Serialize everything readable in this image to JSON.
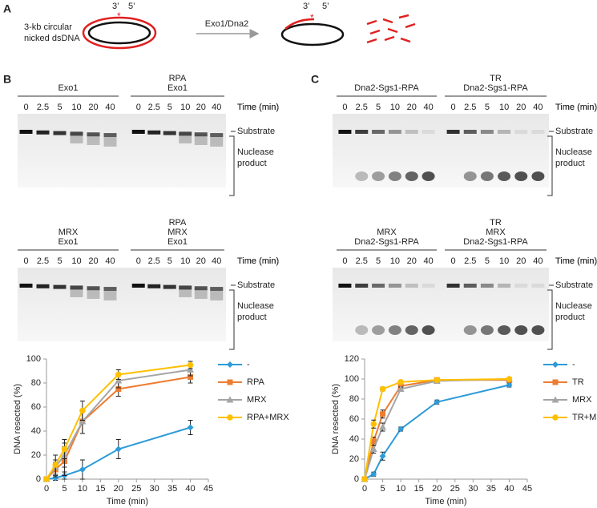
{
  "panel_a": {
    "label": "A",
    "substrate": [
      "3-kb circular",
      "nicked dsDNA"
    ],
    "ends_left": [
      "3’",
      "5’"
    ],
    "ends_right": [
      "3’",
      "5’"
    ],
    "enzyme": "Exo1/Dna2"
  },
  "panel_b": {
    "label": "B",
    "gels": [
      {
        "groups": [
          {
            "header": [
              "Exo1"
            ],
            "times": [
              "0",
              "2.5",
              "5",
              "10",
              "20",
              "40"
            ]
          },
          {
            "header": [
              "RPA",
              "Exo1"
            ],
            "times": [
              "0",
              "2.5",
              "5",
              "10",
              "20",
              "40"
            ]
          }
        ],
        "time_unit": "Time (min)",
        "substrate": "Substrate",
        "product": [
          "Nuclease",
          "product"
        ]
      },
      {
        "groups": [
          {
            "header": [
              "MRX",
              "Exo1"
            ],
            "times": [
              "0",
              "2.5",
              "5",
              "10",
              "20",
              "40"
            ]
          },
          {
            "header": [
              "RPA",
              "MRX",
              "Exo1"
            ],
            "times": [
              "0",
              "2.5",
              "5",
              "10",
              "20",
              "40"
            ]
          }
        ],
        "time_unit": "Time (min)",
        "substrate": "Substrate",
        "product": [
          "Nuclease",
          "product"
        ]
      }
    ]
  },
  "panel_c": {
    "label": "C",
    "gels": [
      {
        "groups": [
          {
            "header": [
              "Dna2-Sgs1-RPA"
            ],
            "times": [
              "0",
              "2.5",
              "5",
              "10",
              "20",
              "40"
            ]
          },
          {
            "header": [
              "TR",
              "Dna2-Sgs1-RPA"
            ],
            "times": [
              "0",
              "2.5",
              "5",
              "10",
              "20",
              "40"
            ]
          }
        ],
        "time_unit": "Time (min)",
        "substrate": "Substrate",
        "product": [
          "Nuclease",
          "product"
        ]
      },
      {
        "groups": [
          {
            "header": [
              "MRX",
              "Dna2-Sgs1-RPA"
            ],
            "times": [
              "0",
              "2.5",
              "5",
              "10",
              "20",
              "40"
            ]
          },
          {
            "header": [
              "TR",
              "MRX",
              "Dna2-Sgs1-RPA"
            ],
            "times": [
              "0",
              "2.5",
              "5",
              "10",
              "20",
              "40"
            ]
          }
        ],
        "time_unit": "Time (min)",
        "substrate": "Substrate",
        "product": [
          "Nuclease",
          "product"
        ]
      }
    ]
  },
  "chart_data": [
    {
      "type": "line",
      "x_label": "Time (min)",
      "y_label": "DNA resected (%)",
      "x": [
        0,
        2.5,
        5,
        10,
        20,
        40
      ],
      "xlim": [
        0,
        45
      ],
      "xticks": [
        0,
        5,
        10,
        15,
        20,
        25,
        30,
        35,
        40,
        45
      ],
      "ylim": [
        0,
        100
      ],
      "yticks": [
        0,
        20,
        40,
        60,
        80,
        100
      ],
      "series": [
        {
          "name": "-",
          "color": "#2e9bd8",
          "marker": "diamond",
          "values": [
            0,
            1,
            3,
            8,
            25,
            43
          ],
          "errors": [
            0,
            2,
            3,
            8,
            8,
            6
          ]
        },
        {
          "name": "RPA",
          "color": "#ed7d31",
          "marker": "square",
          "values": [
            0,
            8,
            15,
            48,
            75,
            85
          ],
          "errors": [
            0,
            6,
            12,
            10,
            6,
            5
          ]
        },
        {
          "name": "MRX",
          "color": "#a5a5a5",
          "marker": "triangle",
          "values": [
            0,
            10,
            20,
            48,
            82,
            91
          ],
          "errors": [
            0,
            6,
            10,
            10,
            6,
            5
          ]
        },
        {
          "name": "RPA+MRX",
          "color": "#ffc000",
          "marker": "circle",
          "values": [
            0,
            12,
            25,
            57,
            87,
            95
          ],
          "errors": [
            0,
            8,
            8,
            8,
            4,
            3
          ]
        }
      ]
    },
    {
      "type": "line",
      "x_label": "Time (min)",
      "y_label": "DNA resected (%)",
      "x": [
        0,
        2.5,
        5,
        10,
        20,
        40
      ],
      "xlim": [
        0,
        45
      ],
      "xticks": [
        0,
        5,
        10,
        15,
        20,
        25,
        30,
        35,
        40,
        45
      ],
      "ylim": [
        0,
        120
      ],
      "yticks": [
        0,
        20,
        40,
        60,
        80,
        100,
        120
      ],
      "series": [
        {
          "name": "-",
          "color": "#2e9bd8",
          "marker": "diamond",
          "values": [
            0,
            5,
            23,
            50,
            77,
            94
          ],
          "errors": [
            0,
            2,
            4,
            2,
            2,
            2
          ]
        },
        {
          "name": "TR",
          "color": "#ed7d31",
          "marker": "square",
          "values": [
            0,
            38,
            65,
            93,
            99,
            99
          ],
          "errors": [
            0,
            4,
            4,
            2,
            1,
            1
          ]
        },
        {
          "name": "MRX",
          "color": "#a5a5a5",
          "marker": "triangle",
          "values": [
            0,
            30,
            52,
            90,
            98,
            100
          ],
          "errors": [
            0,
            4,
            4,
            2,
            1,
            1
          ]
        },
        {
          "name": "TR+MRX",
          "color": "#ffc000",
          "marker": "circle",
          "values": [
            0,
            55,
            90,
            97,
            99,
            100
          ],
          "errors": [
            0,
            4,
            2,
            1,
            1,
            1
          ]
        }
      ]
    }
  ]
}
